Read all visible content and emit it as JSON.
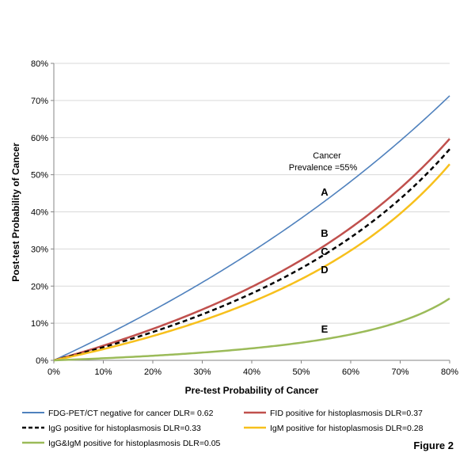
{
  "chart_data": {
    "type": "line",
    "xlabel": "Pre-test Probability of Cancer",
    "ylabel": "Post-test Probability of Cancer",
    "xlim": [
      0,
      80
    ],
    "ylim": [
      0,
      80
    ],
    "x_ticks": [
      0,
      10,
      20,
      30,
      40,
      50,
      60,
      70,
      80
    ],
    "y_ticks": [
      0,
      10,
      20,
      30,
      40,
      50,
      60,
      70,
      80
    ],
    "x_tick_labels": [
      "0%",
      "10%",
      "20%",
      "30%",
      "40%",
      "50%",
      "60%",
      "70%",
      "80%"
    ],
    "y_tick_labels": [
      "0%",
      "10%",
      "20%",
      "30%",
      "40%",
      "50%",
      "60%",
      "70%",
      "80%"
    ],
    "grid": "horizontal",
    "legend_position": "bottom",
    "x": [
      0,
      10,
      20,
      30,
      40,
      50,
      60,
      70,
      80
    ],
    "series": [
      {
        "name": "FDG-PET/CT negative for cancer DLR= 0.62",
        "dlr": 0.62,
        "color": "#4f81bd",
        "style": "solid",
        "curve_label": "A",
        "values": [
          0,
          6.4,
          13.4,
          21.0,
          29.3,
          38.3,
          48.2,
          59.1,
          71.3
        ]
      },
      {
        "name": "FID positive for histoplasmosis DLR=0.37",
        "dlr": 0.37,
        "color": "#c0504d",
        "style": "solid",
        "curve_label": "B",
        "values": [
          0,
          3.9,
          8.5,
          13.7,
          19.8,
          27.0,
          35.7,
          46.3,
          59.7
        ]
      },
      {
        "name": "IgG positive for histoplasmosis DLR=0.33",
        "dlr": 0.33,
        "color": "#000000",
        "style": "dashed",
        "curve_label": "C",
        "values": [
          0,
          3.5,
          7.6,
          12.4,
          18.0,
          24.8,
          33.1,
          43.5,
          56.9
        ]
      },
      {
        "name": "IgM positive for histoplasmosis DLR=0.28",
        "dlr": 0.28,
        "color": "#f7c01c",
        "style": "solid",
        "curve_label": "D",
        "values": [
          0,
          3.0,
          6.5,
          10.7,
          15.7,
          21.9,
          29.6,
          39.5,
          52.8
        ]
      },
      {
        "name": "IgG&IgM positive for histoplasmosis DLR=0.05",
        "dlr": 0.05,
        "color": "#9bbb59",
        "style": "solid",
        "curve_label": "E",
        "values": [
          0,
          0.6,
          1.2,
          2.1,
          3.2,
          4.8,
          7.0,
          10.4,
          16.7
        ]
      }
    ],
    "annotation": {
      "line1": "Cancer",
      "line2": "Prevalence =55%"
    },
    "figure_label": "Figure 2"
  }
}
